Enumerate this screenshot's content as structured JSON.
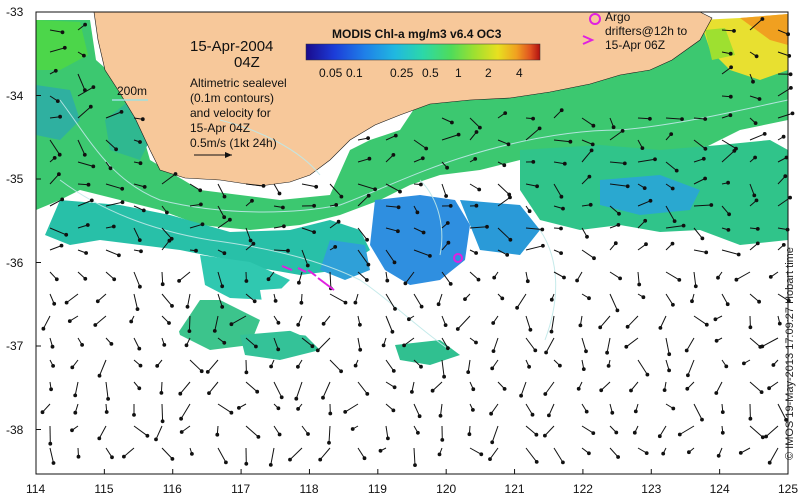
{
  "map": {
    "date_label": "15-Apr-2004",
    "time_label": "04Z",
    "colorbar": {
      "title": "MODIS Chl-a mg/m3 v6.4 OC3",
      "ticks": [
        "0.05",
        "0.1",
        "0.25",
        "0.5",
        "1",
        "2",
        "4"
      ],
      "colors": [
        "#1a0a8c",
        "#1c3cd8",
        "#1f7fe8",
        "#20b8e0",
        "#2cd8a8",
        "#4fdc5a",
        "#9ee030",
        "#e8e020",
        "#f0a020",
        "#e05020",
        "#b01010"
      ]
    },
    "depth_contour_label": "200m",
    "info_lines": [
      "Altimetric sealevel",
      "(0.1m contours)",
      "and velocity for",
      "15-Apr 04Z",
      "0.5m/s (1kt 24h)"
    ],
    "argo_lines": [
      "Argo",
      "drifters@12h to",
      "15-Apr 06Z"
    ],
    "credit": "© IMOS 19-May-2013 17:09:27 Hobart time",
    "x_axis_labels": [
      "114",
      "115",
      "116",
      "117",
      "118",
      "119",
      "120",
      "121",
      "122",
      "123",
      "124",
      "125"
    ],
    "y_axis_labels": [
      "-33",
      "-34",
      "-35",
      "-36",
      "-37",
      "-38"
    ],
    "land_color": "#f7c89a",
    "accent_magenta": "#e020e0"
  }
}
